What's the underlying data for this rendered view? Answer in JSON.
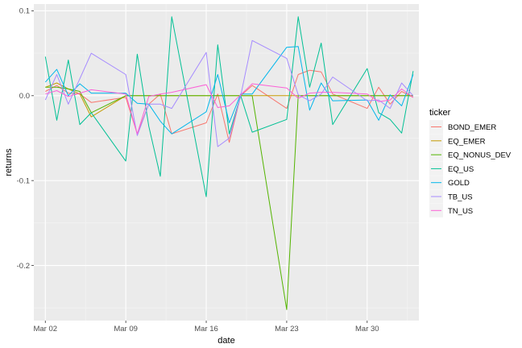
{
  "chart_data": {
    "type": "line",
    "xlabel": "date",
    "ylabel": "returns",
    "x_ticks": [
      {
        "label": "Mar 02",
        "day": 2
      },
      {
        "label": "Mar 09",
        "day": 9
      },
      {
        "label": "Mar 16",
        "day": 16
      },
      {
        "label": "Mar 23",
        "day": 23
      },
      {
        "label": "Mar 30",
        "day": 30
      }
    ],
    "y_ticks": [
      0.1,
      0.0,
      -0.1,
      -0.2
    ],
    "xlim": [
      1.0,
      34.5
    ],
    "ylim": [
      -0.265,
      0.108
    ],
    "grid": true,
    "legend": {
      "title": "ticker",
      "position": "right"
    },
    "series": [
      {
        "name": "BOND_EMER",
        "color": "#F8766D",
        "x": [
          2,
          3,
          4,
          5,
          6,
          9,
          10,
          11,
          12,
          13,
          16,
          17,
          18,
          19,
          20,
          23,
          24,
          25,
          26,
          27,
          30,
          31,
          32,
          33,
          34
        ],
        "y": [
          0.005,
          0.012,
          0.003,
          0.002,
          -0.008,
          -0.002,
          -0.045,
          -0.01,
          0.002,
          -0.045,
          -0.032,
          0.002,
          -0.055,
          0.0,
          0.012,
          -0.015,
          0.025,
          0.03,
          0.028,
          0.002,
          -0.015,
          0.01,
          -0.01,
          0.005,
          -0.002
        ]
      },
      {
        "name": "EQ_EMER",
        "color": "#C49A00",
        "x": [
          2,
          3,
          4,
          5,
          6,
          9,
          10,
          11,
          12,
          13,
          16,
          17,
          18,
          19,
          20,
          23,
          24,
          25,
          26,
          27,
          30,
          31,
          32,
          33,
          34
        ],
        "y": [
          0.01,
          0.015,
          0.008,
          0.002,
          -0.025,
          0.0,
          0.0,
          0.0,
          0.0,
          0.0,
          0.0,
          0.0,
          0.0,
          0.0,
          0.0,
          0.0,
          0.0,
          0.0,
          0.0,
          0.0,
          0.0,
          0.0,
          0.0,
          0.0,
          0.0
        ]
      },
      {
        "name": "EQ_NONUS_DEV",
        "color": "#53B400",
        "x": [
          2,
          3,
          4,
          5,
          6,
          9,
          10,
          11,
          12,
          13,
          16,
          17,
          18,
          19,
          20,
          23,
          24,
          25,
          26,
          27,
          30,
          31,
          32,
          33,
          34
        ],
        "y": [
          0.01,
          0.01,
          0.008,
          0.005,
          -0.02,
          0.0,
          0.0,
          0.0,
          0.0,
          0.0,
          0.0,
          0.0,
          0.0,
          0.0,
          0.0,
          -0.252,
          0.0,
          0.0,
          0.0,
          0.0,
          0.0,
          0.0,
          0.0,
          0.0,
          0.0
        ]
      },
      {
        "name": "EQ_US",
        "color": "#00C094",
        "x": [
          2,
          3,
          4,
          5,
          6,
          9,
          10,
          11,
          12,
          13,
          16,
          17,
          18,
          19,
          20,
          23,
          24,
          25,
          26,
          27,
          30,
          31,
          32,
          33,
          34
        ],
        "y": [
          0.046,
          -0.029,
          0.042,
          -0.034,
          -0.02,
          -0.077,
          0.049,
          -0.036,
          -0.095,
          0.093,
          -0.119,
          0.06,
          -0.045,
          0.0,
          -0.043,
          -0.028,
          0.093,
          0.01,
          0.062,
          -0.034,
          0.032,
          -0.02,
          -0.028,
          -0.044,
          0.029
        ]
      },
      {
        "name": "GOLD",
        "color": "#00B6EB",
        "x": [
          2,
          3,
          4,
          5,
          6,
          9,
          10,
          11,
          12,
          13,
          16,
          17,
          18,
          19,
          20,
          23,
          24,
          25,
          26,
          27,
          30,
          31,
          32,
          33,
          34
        ],
        "y": [
          0.016,
          0.031,
          0.0,
          0.014,
          0.003,
          0.003,
          -0.009,
          -0.01,
          -0.03,
          -0.045,
          -0.019,
          0.025,
          -0.032,
          0.002,
          0.002,
          0.057,
          0.058,
          -0.017,
          0.015,
          -0.006,
          -0.005,
          -0.029,
          0.001,
          -0.012,
          0.025
        ]
      },
      {
        "name": "TB_US",
        "color": "#A58AFF",
        "x": [
          2,
          3,
          4,
          5,
          6,
          9,
          10,
          11,
          12,
          13,
          16,
          17,
          18,
          19,
          20,
          23,
          24,
          25,
          26,
          27,
          30,
          31,
          32,
          33,
          34
        ],
        "y": [
          -0.005,
          0.025,
          -0.01,
          0.02,
          0.05,
          0.025,
          -0.047,
          -0.01,
          -0.01,
          -0.015,
          0.051,
          -0.06,
          -0.05,
          0.0,
          0.065,
          0.044,
          0.001,
          -0.006,
          0.002,
          0.022,
          -0.006,
          -0.005,
          -0.015,
          0.015,
          0.0
        ]
      },
      {
        "name": "TN_US",
        "color": "#FB61D7",
        "x": [
          2,
          3,
          4,
          5,
          6,
          9,
          10,
          11,
          12,
          13,
          16,
          17,
          18,
          19,
          20,
          23,
          24,
          25,
          26,
          27,
          30,
          31,
          32,
          33,
          34
        ],
        "y": [
          0.002,
          0.006,
          -0.001,
          0.003,
          0.007,
          0.002,
          -0.045,
          -0.001,
          0.002,
          0.004,
          0.013,
          -0.014,
          -0.012,
          0.001,
          0.014,
          0.009,
          -0.003,
          0.003,
          0.004,
          0.004,
          0.002,
          -0.007,
          -0.005,
          0.008,
          -0.002
        ]
      }
    ]
  }
}
